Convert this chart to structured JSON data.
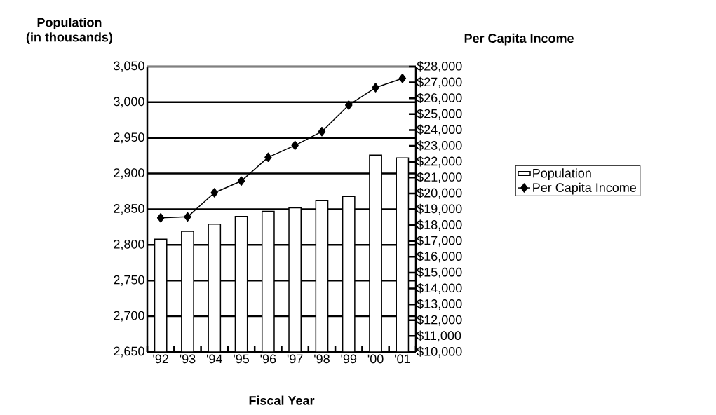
{
  "chart_data": {
    "type": "bar",
    "xlabel": "Fiscal Year",
    "ylabel": "Population\n(in thousands)",
    "y2label": "Per Capita Income",
    "categories": [
      "'92",
      "'93",
      "'94",
      "'95",
      "'96",
      "'97",
      "'98",
      "'99",
      "'00",
      "'01"
    ],
    "series": [
      {
        "name": "Population",
        "type": "bar",
        "color": "#ffffff",
        "values": [
          2808,
          2819,
          2829,
          2840,
          2847,
          2852,
          2862,
          2868,
          2926,
          2922
        ]
      },
      {
        "name": "Per Capita Income",
        "type": "line",
        "axis": "y2",
        "color": "#000000",
        "marker": "diamond",
        "values": [
          18460,
          18520,
          20040,
          20780,
          22280,
          23030,
          23900,
          25570,
          26670,
          27260
        ]
      }
    ],
    "ylim": [
      2650,
      3050
    ],
    "yticks": [
      {
        "value": 2650,
        "label": "2,650"
      },
      {
        "value": 2700,
        "label": "2,700"
      },
      {
        "value": 2750,
        "label": "2,750"
      },
      {
        "value": 2800,
        "label": "2,800"
      },
      {
        "value": 2850,
        "label": "2,850"
      },
      {
        "value": 2900,
        "label": "2,900"
      },
      {
        "value": 2950,
        "label": "2,950"
      },
      {
        "value": 3000,
        "label": "3,000"
      },
      {
        "value": 3050,
        "label": "3,050"
      }
    ],
    "y2lim": [
      10000,
      28000
    ],
    "y2ticks": [
      {
        "value": 10000,
        "label": "$10,000"
      },
      {
        "value": 11000,
        "label": "$11,000"
      },
      {
        "value": 12000,
        "label": "$12,000"
      },
      {
        "value": 13000,
        "label": "$13,000"
      },
      {
        "value": 14000,
        "label": "$14,000"
      },
      {
        "value": 15000,
        "label": "$15,000"
      },
      {
        "value": 16000,
        "label": "$16,000"
      },
      {
        "value": 17000,
        "label": "$17,000"
      },
      {
        "value": 18000,
        "label": "$18,000"
      },
      {
        "value": 19000,
        "label": "$19,000"
      },
      {
        "value": 20000,
        "label": "$20,000"
      },
      {
        "value": 21000,
        "label": "$21,000"
      },
      {
        "value": 22000,
        "label": "$22,000"
      },
      {
        "value": 23000,
        "label": "$23,000"
      },
      {
        "value": 24000,
        "label": "$24,000"
      },
      {
        "value": 25000,
        "label": "$25,000"
      },
      {
        "value": 26000,
        "label": "$26,000"
      },
      {
        "value": 27000,
        "label": "$27,000"
      },
      {
        "value": 28000,
        "label": "$28,000"
      }
    ],
    "grid": "y",
    "legend": "right"
  }
}
